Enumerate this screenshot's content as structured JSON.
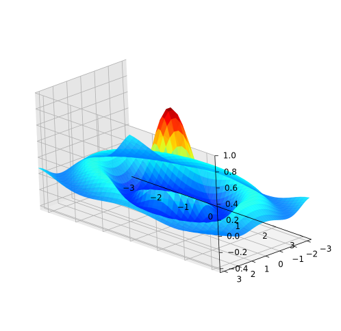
{
  "chart_data": {
    "type": "surface3d",
    "function": "sin(sqrt(x^2+y^2)*pi/?)/...",
    "x_range": [
      -3.3,
      3.3
    ],
    "y_range": [
      -3.3,
      3.3
    ],
    "z_range": [
      -0.45,
      1.0
    ],
    "grid_points": 41,
    "colormap": "jet",
    "grid": true,
    "x_ticks": [
      -3,
      -2,
      -1,
      0,
      1,
      2,
      3
    ],
    "y_ticks": [
      -3,
      -2,
      -1,
      0,
      1,
      2,
      3
    ],
    "z_ticks": [
      -0.4,
      -0.2,
      0.0,
      0.2,
      0.4,
      0.6,
      0.8,
      1.0
    ],
    "x_tick_labels": [
      "−3",
      "−2",
      "−1",
      "0",
      "1",
      "2",
      "3"
    ],
    "y_tick_labels": [
      "−3",
      "−2",
      "−1",
      "0",
      "1",
      "2",
      "3"
    ],
    "z_tick_labels": [
      "−0.4",
      "−0.2",
      "0.0",
      "0.2",
      "0.4",
      "0.6",
      "0.8",
      "1.0"
    ]
  }
}
